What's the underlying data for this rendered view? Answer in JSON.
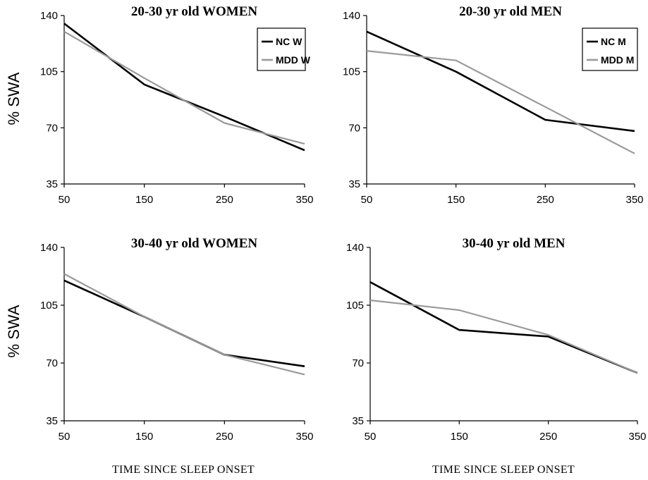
{
  "y_axis_label": "% SWA",
  "x_axis_label": "TIME  SINCE SLEEP ONSET",
  "series_colors": {
    "nc": "#000000",
    "mdd": "#9a9a9a"
  },
  "chart_data": [
    {
      "type": "line",
      "title": "20-30 yr old WOMEN",
      "x": [
        50,
        150,
        250,
        350
      ],
      "xticks": [
        50,
        150,
        250,
        350
      ],
      "yticks": [
        35,
        70,
        105,
        140
      ],
      "xlim": [
        50,
        350
      ],
      "ylim": [
        35,
        140
      ],
      "show_legend": true,
      "series": [
        {
          "name": "NC W",
          "role": "nc",
          "values": [
            135,
            97,
            77,
            56
          ]
        },
        {
          "name": "MDD W",
          "role": "mdd",
          "values": [
            130,
            101,
            73,
            60
          ]
        }
      ]
    },
    {
      "type": "line",
      "title": "20-30 yr old MEN",
      "x": [
        50,
        150,
        250,
        350
      ],
      "xticks": [
        50,
        150,
        250,
        350
      ],
      "yticks": [
        35,
        70,
        105,
        140
      ],
      "xlim": [
        50,
        350
      ],
      "ylim": [
        35,
        140
      ],
      "show_legend": true,
      "series": [
        {
          "name": "NC M",
          "role": "nc",
          "values": [
            130,
            105,
            75,
            68
          ]
        },
        {
          "name": "MDD M",
          "role": "mdd",
          "values": [
            118,
            112,
            83,
            54
          ]
        }
      ]
    },
    {
      "type": "line",
      "title": "30-40 yr old WOMEN",
      "x": [
        50,
        150,
        250,
        350
      ],
      "xticks": [
        50,
        150,
        250,
        350
      ],
      "yticks": [
        35,
        70,
        105,
        140
      ],
      "xlim": [
        50,
        350
      ],
      "ylim": [
        35,
        140
      ],
      "show_legend": false,
      "series": [
        {
          "role": "nc",
          "values": [
            120,
            98,
            75,
            68
          ]
        },
        {
          "role": "mdd",
          "values": [
            124,
            98,
            75,
            63
          ]
        }
      ]
    },
    {
      "type": "line",
      "title": "30-40 yr old MEN",
      "x": [
        50,
        150,
        250,
        350
      ],
      "xticks": [
        50,
        150,
        250,
        350
      ],
      "yticks": [
        35,
        70,
        105,
        140
      ],
      "xlim": [
        50,
        350
      ],
      "ylim": [
        35,
        140
      ],
      "show_legend": false,
      "series": [
        {
          "role": "nc",
          "values": [
            119,
            90,
            86,
            64
          ]
        },
        {
          "role": "mdd",
          "values": [
            108,
            102,
            87,
            64
          ]
        }
      ]
    }
  ]
}
